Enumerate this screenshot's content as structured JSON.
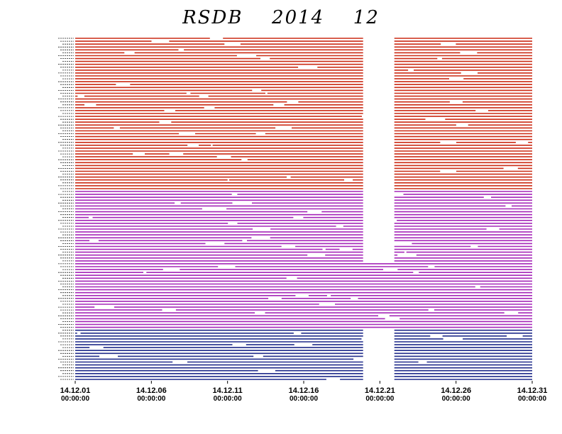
{
  "chart_data": {
    "type": "timeline",
    "title": "RSDB  2014  12",
    "x_range": [
      "2014-12-01 00:00:00",
      "2014-12-31 00:00:00"
    ],
    "x_ticks": [
      {
        "date": "14.12.01",
        "time": "00:00:00",
        "day": 1
      },
      {
        "date": "14.12.06",
        "time": "00:00:00",
        "day": 6
      },
      {
        "date": "14.12.11",
        "time": "00:00:00",
        "day": 11
      },
      {
        "date": "14.12.16",
        "time": "00:00:00",
        "day": 16
      },
      {
        "date": "14.12.21",
        "time": "00:00:00",
        "day": 21
      },
      {
        "date": "14.12.26",
        "time": "00:00:00",
        "day": 26
      },
      {
        "date": "14.12.31",
        "time": "00:00:00",
        "day": 31
      }
    ],
    "groups": [
      {
        "color": "#cc2a14",
        "rows": 53,
        "coverage_gaps": [
          {
            "start_day": 19.9,
            "end_day": 21.95
          }
        ]
      },
      {
        "color": "#a526b8",
        "rows": 48,
        "coverage_gaps": [
          {
            "start_day": 19.9,
            "end_day": 21.95,
            "rows_from": 0,
            "rows_to": 25
          }
        ]
      },
      {
        "color": "#1f2a8a",
        "rows": 18,
        "coverage_gaps": [
          {
            "start_day": 19.9,
            "end_day": 21.95
          }
        ]
      }
    ],
    "grid": false,
    "legend": "none"
  }
}
